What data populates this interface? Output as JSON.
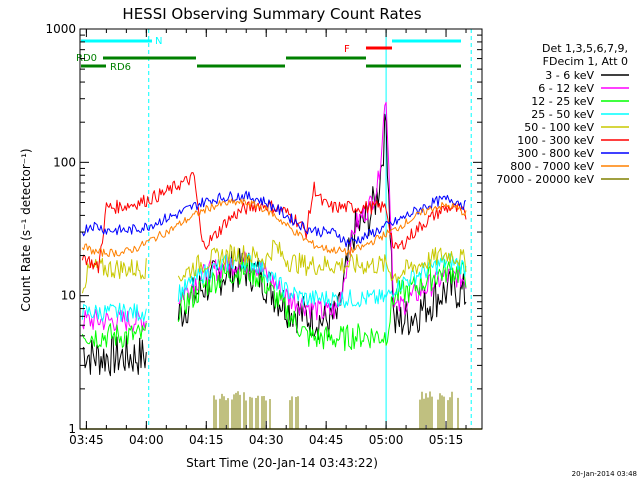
{
  "chart_data": {
    "type": "line",
    "title": "HESSI Observing Summary Count Rates",
    "xlabel": "Start Time (20-Jan-14 03:43:22)",
    "ylabel": "Count Rate (s⁻¹ detector⁻¹)",
    "x_unit": "minutes",
    "xlim": [
      223.4,
      324.0
    ],
    "ylim": [
      1,
      1000
    ],
    "yscale": "log",
    "x_ticks": [
      {
        "value": 225,
        "label": "03:45"
      },
      {
        "value": 240,
        "label": "04:00"
      },
      {
        "value": 255,
        "label": "04:15"
      },
      {
        "value": 270,
        "label": "04:30"
      },
      {
        "value": 285,
        "label": "04:45"
      },
      {
        "value": 300,
        "label": "05:00"
      },
      {
        "value": 315,
        "label": "05:15"
      }
    ],
    "y_ticks": [
      {
        "value": 1,
        "label": "1"
      },
      {
        "value": 10,
        "label": "10"
      },
      {
        "value": 100,
        "label": "100"
      },
      {
        "value": 1000,
        "label": "1000"
      }
    ],
    "legend": {
      "placement": "right",
      "header": [
        "Det 1,3,5,6,7,9,",
        "FDecim 1, Att 0"
      ]
    },
    "series": [
      {
        "name": "3 - 6 keV",
        "color": "#000000",
        "x": [
          224.0,
          226.0,
          228.0,
          230.0,
          232.0,
          234.0,
          236.0,
          238.0,
          240.0,
          242.0,
          244.0,
          246.0,
          248.0,
          250.0,
          252.0,
          254.0,
          256.0,
          258.0,
          260.0,
          262.0,
          264.0,
          266.0,
          268.0,
          270.0,
          272.0,
          274.0,
          276.0,
          278.0,
          280.0,
          282.0,
          284.0,
          286.0,
          288.0,
          290.0,
          292.0,
          294.0,
          296.0,
          298.0,
          300.0,
          302.0,
          304.0,
          306.0,
          308.0,
          310.0,
          312.0,
          314.0,
          316.0,
          318.0,
          320.0
        ],
        "y": [
          4.0,
          3.5,
          3.5,
          3.5,
          3.5,
          3.5,
          3.5,
          3.5,
          3.5,
          null,
          null,
          null,
          7.0,
          8.5,
          10.0,
          11.5,
          12.5,
          14.0,
          15.0,
          15.5,
          15.8,
          15.5,
          14.5,
          12.5,
          10.5,
          9.0,
          8.0,
          7.5,
          7.0,
          6.8,
          6.5,
          6.5,
          7.0,
          15.0,
          30.0,
          35.0,
          40.0,
          60.0,
          200.0,
          6.0,
          6.5,
          7.0,
          7.5,
          8.5,
          9.5,
          10.5,
          11.0,
          11.0,
          10.0
        ]
      },
      {
        "name": "6 - 12 keV",
        "color": "#ff00ff",
        "x": [
          224.0,
          226.0,
          228.0,
          230.0,
          232.0,
          234.0,
          236.0,
          238.0,
          240.0,
          242.0,
          244.0,
          246.0,
          248.0,
          250.0,
          252.0,
          254.0,
          256.0,
          258.0,
          260.0,
          262.0,
          264.0,
          266.0,
          268.0,
          270.0,
          272.0,
          274.0,
          276.0,
          278.0,
          280.0,
          282.0,
          284.0,
          286.0,
          288.0,
          290.0,
          292.0,
          294.0,
          296.0,
          298.0,
          300.0,
          302.0,
          304.0,
          306.0,
          308.0,
          310.0,
          312.0,
          314.0,
          316.0,
          318.0,
          320.0
        ],
        "y": [
          6.5,
          6.5,
          6.5,
          6.5,
          6.5,
          6.5,
          6.5,
          6.5,
          6.5,
          null,
          null,
          null,
          9.5,
          11.0,
          12.5,
          14.0,
          15.0,
          16.0,
          17.0,
          17.5,
          17.8,
          17.5,
          16.5,
          14.5,
          12.5,
          10.5,
          9.5,
          9.0,
          8.5,
          8.0,
          7.5,
          7.5,
          8.0,
          16.0,
          32.0,
          40.0,
          48.0,
          70.0,
          330.0,
          8.0,
          8.5,
          9.5,
          10.5,
          11.5,
          12.5,
          13.5,
          14.0,
          14.0,
          13.0
        ]
      },
      {
        "name": "12 - 25 keV",
        "color": "#00ff00",
        "x": [
          224.0,
          226.0,
          228.0,
          230.0,
          232.0,
          234.0,
          236.0,
          238.0,
          240.0,
          242.0,
          244.0,
          246.0,
          248.0,
          250.0,
          252.0,
          254.0,
          256.0,
          258.0,
          260.0,
          262.0,
          264.0,
          266.0,
          268.0,
          270.0,
          272.0,
          274.0,
          276.0,
          278.0,
          280.0,
          282.0,
          284.0,
          286.0,
          288.0,
          290.0,
          292.0,
          294.0,
          296.0,
          298.0,
          300.0,
          302.0,
          304.0,
          306.0,
          308.0,
          310.0,
          312.0,
          314.0,
          316.0,
          318.0,
          320.0
        ],
        "y": [
          5.5,
          5.0,
          5.0,
          5.0,
          5.0,
          5.0,
          5.0,
          5.0,
          5.0,
          null,
          null,
          null,
          8.0,
          9.0,
          10.0,
          11.5,
          12.5,
          13.5,
          14.5,
          15.0,
          15.5,
          15.0,
          14.0,
          12.0,
          10.0,
          8.5,
          7.0,
          6.0,
          5.0,
          4.8,
          4.8,
          4.8,
          4.8,
          4.8,
          5.0,
          5.0,
          5.0,
          5.0,
          5.0,
          10.0,
          10.5,
          11.0,
          12.0,
          13.0,
          14.0,
          15.0,
          15.5,
          15.0,
          14.0
        ]
      },
      {
        "name": "25 - 50 keV",
        "color": "#00ffff",
        "x": [
          224.0,
          226.0,
          228.0,
          230.0,
          232.0,
          234.0,
          236.0,
          238.0,
          240.0,
          242.0,
          244.0,
          246.0,
          248.0,
          250.0,
          252.0,
          254.0,
          256.0,
          258.0,
          260.0,
          262.0,
          264.0,
          266.0,
          268.0,
          270.0,
          272.0,
          274.0,
          276.0,
          278.0,
          280.0,
          282.0,
          284.0,
          286.0,
          288.0,
          290.0,
          292.0,
          294.0,
          296.0,
          298.0,
          300.0,
          302.0,
          304.0,
          306.0,
          308.0,
          310.0,
          312.0,
          314.0,
          316.0,
          318.0,
          320.0
        ],
        "y": [
          7.5,
          7.5,
          7.5,
          7.5,
          7.5,
          7.5,
          7.5,
          7.5,
          7.5,
          null,
          null,
          null,
          10.5,
          11.5,
          13.0,
          14.5,
          15.5,
          16.5,
          17.5,
          18.0,
          18.2,
          18.0,
          17.0,
          15.0,
          13.0,
          11.5,
          10.5,
          10.0,
          9.5,
          9.5,
          9.5,
          9.5,
          9.5,
          9.5,
          9.5,
          9.5,
          9.5,
          9.5,
          9.5,
          11.5,
          12.5,
          13.5,
          14.5,
          15.5,
          16.5,
          17.5,
          18.0,
          17.5,
          16.0
        ]
      },
      {
        "name": "50 - 100 keV",
        "color": "#c8c800",
        "x": [
          224.0,
          226.0,
          228.0,
          230.0,
          232.0,
          234.0,
          236.0,
          238.0,
          240.0,
          242.0,
          244.0,
          246.0,
          248.0,
          250.0,
          252.0,
          254.0,
          256.0,
          258.0,
          260.0,
          262.0,
          264.0,
          266.0,
          268.0,
          270.0,
          272.0,
          274.0,
          276.0,
          278.0,
          280.0,
          282.0,
          284.0,
          286.0,
          288.0,
          290.0,
          292.0,
          294.0,
          296.0,
          298.0,
          300.0,
          302.0,
          304.0,
          306.0,
          308.0,
          310.0,
          312.0,
          314.0,
          316.0,
          318.0,
          320.0
        ],
        "y": [
          12.0,
          16.0,
          16.0,
          16.0,
          16.0,
          16.0,
          16.0,
          16.0,
          16.0,
          null,
          null,
          null,
          14.0,
          15.0,
          16.5,
          17.5,
          18.5,
          19.5,
          20.0,
          20.5,
          20.5,
          20.0,
          19.5,
          18.5,
          24.0,
          20.0,
          18.0,
          17.5,
          17.0,
          17.0,
          17.0,
          17.0,
          17.0,
          17.0,
          17.0,
          17.0,
          17.0,
          17.0,
          17.0,
          14.0,
          15.0,
          16.0,
          17.0,
          18.0,
          19.0,
          20.0,
          20.5,
          19.5,
          18.0
        ]
      },
      {
        "name": "100 - 300 keV",
        "color": "#ff0000",
        "x": [
          224.0,
          226.0,
          228.0,
          230.0,
          232.0,
          234.0,
          236.0,
          238.0,
          240.0,
          242.0,
          244.0,
          246.0,
          248.0,
          250.0,
          252.0,
          254.0,
          256.0,
          258.0,
          260.0,
          262.0,
          264.0,
          266.0,
          268.0,
          270.0,
          272.0,
          274.0,
          276.0,
          278.0,
          280.0,
          282.0,
          284.0,
          286.0,
          288.0,
          290.0,
          292.0,
          294.0,
          296.0,
          298.0,
          300.0,
          302.0,
          304.0,
          306.0,
          308.0,
          310.0,
          312.0,
          314.0,
          316.0,
          318.0,
          320.0
        ],
        "y": [
          20.0,
          18.0,
          16.0,
          46.0,
          46.0,
          47.0,
          48.0,
          50.0,
          52.0,
          55.0,
          58.0,
          62.0,
          68.0,
          72.0,
          78.0,
          24.0,
          26.0,
          30.0,
          36.0,
          40.0,
          44.0,
          46.0,
          48.0,
          48.0,
          46.0,
          44.0,
          40.0,
          36.0,
          30.0,
          65.0,
          50.0,
          46.0,
          46.0,
          46.0,
          46.0,
          46.0,
          46.0,
          46.0,
          46.0,
          22.0,
          24.0,
          28.0,
          32.0,
          36.0,
          40.0,
          44.0,
          46.0,
          44.0,
          40.0
        ]
      },
      {
        "name": "300 - 800 keV",
        "color": "#0000ff",
        "x": [
          224.0,
          226.0,
          228.0,
          230.0,
          232.0,
          234.0,
          236.0,
          238.0,
          240.0,
          242.0,
          244.0,
          246.0,
          248.0,
          250.0,
          252.0,
          254.0,
          256.0,
          258.0,
          260.0,
          262.0,
          264.0,
          266.0,
          268.0,
          270.0,
          272.0,
          274.0,
          276.0,
          278.0,
          280.0,
          282.0,
          284.0,
          286.0,
          288.0,
          290.0,
          292.0,
          294.0,
          296.0,
          298.0,
          300.0,
          302.0,
          304.0,
          306.0,
          308.0,
          310.0,
          312.0,
          314.0,
          316.0,
          318.0,
          320.0
        ],
        "y": [
          30.0,
          34.0,
          33.0,
          31.0,
          31.0,
          31.0,
          31.0,
          32.0,
          33.0,
          35.0,
          37.0,
          39.0,
          41.0,
          44.0,
          47.0,
          50.0,
          52.0,
          54.0,
          55.0,
          56.0,
          56.0,
          55.0,
          53.0,
          50.0,
          46.0,
          42.0,
          38.0,
          35.0,
          32.0,
          31.0,
          30.0,
          30.0,
          29.0,
          25.0,
          26.0,
          27.0,
          29.0,
          31.0,
          33.0,
          35.0,
          38.0,
          41.0,
          44.0,
          47.0,
          50.0,
          52.0,
          53.0,
          51.0,
          47.0
        ]
      },
      {
        "name": "800 - 7000 keV",
        "color": "#ff8000",
        "x": [
          224.0,
          226.0,
          228.0,
          230.0,
          232.0,
          234.0,
          236.0,
          238.0,
          240.0,
          242.0,
          244.0,
          246.0,
          248.0,
          250.0,
          252.0,
          254.0,
          256.0,
          258.0,
          260.0,
          262.0,
          264.0,
          266.0,
          268.0,
          270.0,
          272.0,
          274.0,
          276.0,
          278.0,
          280.0,
          282.0,
          284.0,
          286.0,
          288.0,
          290.0,
          292.0,
          294.0,
          296.0,
          298.0,
          300.0,
          302.0,
          304.0,
          306.0,
          308.0,
          310.0,
          312.0,
          314.0,
          316.0,
          318.0,
          320.0
        ],
        "y": [
          24.0,
          22.0,
          21.0,
          21.0,
          21.0,
          21.0,
          22.0,
          23.0,
          25.0,
          27.0,
          29.0,
          31.0,
          34.0,
          37.0,
          40.0,
          43.0,
          46.0,
          48.0,
          49.0,
          50.0,
          50.0,
          49.0,
          47.0,
          44.0,
          40.0,
          36.0,
          32.0,
          29.0,
          26.0,
          24.0,
          23.0,
          22.0,
          22.0,
          21.0,
          22.0,
          23.0,
          25.0,
          27.0,
          29.0,
          31.0,
          34.0,
          37.0,
          40.0,
          43.0,
          46.0,
          47.0,
          47.0,
          45.0,
          41.0
        ]
      },
      {
        "name": "7000 - 20000 keV",
        "color": "#808000",
        "x": [
          223.4,
          300.0,
          301.0,
          302.0,
          303.0,
          304.0,
          305.0,
          306.0,
          307.0,
          308.0,
          309.0,
          310.0,
          311.0,
          312.0,
          313.0,
          314.0,
          315.0,
          316.0,
          317.0,
          318.0,
          319.0,
          320.0,
          321.0,
          322.0,
          323.0,
          324.0
        ],
        "y": [
          1.0,
          1.0,
          1.0,
          1.0,
          1.0,
          1.0,
          1.0,
          1.0,
          1.0,
          1.0,
          1.0,
          1.0,
          1.0,
          1.0,
          1.0,
          1.0,
          1.0,
          1.0,
          1.0,
          1.0,
          1.0,
          1.0,
          1.0,
          1.0,
          1.0,
          1.0
        ]
      }
    ],
    "status_bars": [
      {
        "label": "N",
        "color": "#00ffff"
      },
      {
        "label": "F",
        "color": "#ff0000"
      },
      {
        "label": "RD0",
        "color": "#008000"
      },
      {
        "label": "RD6",
        "color": "#008000"
      }
    ],
    "timestamp": "20-Jan-2014 03:48"
  }
}
